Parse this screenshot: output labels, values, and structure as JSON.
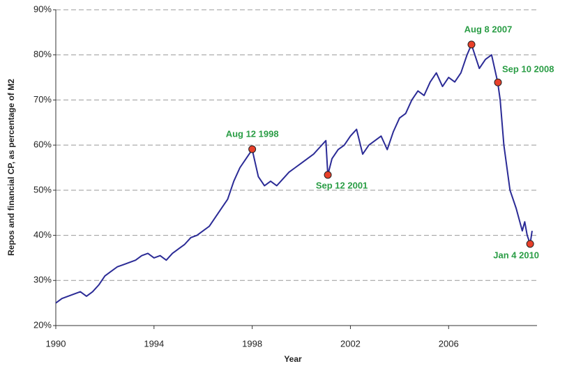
{
  "chart_data": {
    "type": "line",
    "x_label": "Year",
    "y_label": "Repos and financial CP, as percentage of M2",
    "xlim": [
      1990,
      2009.6
    ],
    "xticks": [
      1990,
      1994,
      1998,
      2002,
      2006
    ],
    "ylim": [
      20,
      90
    ],
    "yticks": [
      {
        "value": 20,
        "label": "20%"
      },
      {
        "value": 30,
        "label": "30%"
      },
      {
        "value": 40,
        "label": "40%"
      },
      {
        "value": 50,
        "label": "50%"
      },
      {
        "value": 60,
        "label": "60%"
      },
      {
        "value": 70,
        "label": "70%"
      },
      {
        "value": 80,
        "label": "80%"
      },
      {
        "value": 90,
        "label": "90%"
      }
    ],
    "grid": true,
    "x": [
      1990,
      1990.25,
      1990.5,
      1990.75,
      1991,
      1991.25,
      1991.5,
      1991.75,
      1992,
      1992.25,
      1992.5,
      1992.75,
      1993,
      1993.25,
      1993.5,
      1993.75,
      1994,
      1994.25,
      1994.5,
      1994.75,
      1995,
      1995.25,
      1995.5,
      1995.75,
      1996,
      1996.25,
      1996.5,
      1996.75,
      1997,
      1997.25,
      1997.5,
      1997.75,
      1998,
      1998.25,
      1998.5,
      1998.75,
      1999,
      1999.25,
      1999.5,
      1999.75,
      2000,
      2000.25,
      2000.5,
      2000.75,
      2001,
      2001.08,
      2001.25,
      2001.5,
      2001.75,
      2002,
      2002.25,
      2002.5,
      2002.75,
      2003,
      2003.25,
      2003.5,
      2003.75,
      2004,
      2004.25,
      2004.5,
      2004.75,
      2005,
      2005.25,
      2005.5,
      2005.75,
      2006,
      2006.25,
      2006.5,
      2006.75,
      2006.93,
      2007.25,
      2007.5,
      2007.75,
      2008,
      2008.1,
      2008.25,
      2008.5,
      2008.75,
      2009,
      2009.1,
      2009.2,
      2009.32,
      2009.4
    ],
    "series": [
      {
        "color": "#2b2b96",
        "values": [
          25,
          26,
          26.5,
          27,
          27.5,
          26.5,
          27.5,
          29,
          31,
          32,
          33,
          33.5,
          34,
          34.5,
          35.5,
          36,
          35,
          35.5,
          34.5,
          36,
          37,
          38,
          39.5,
          40,
          41,
          42,
          44,
          46,
          48,
          52,
          55,
          57,
          59,
          53,
          51,
          52,
          51,
          52.5,
          54,
          55,
          56,
          57,
          58,
          59.5,
          61,
          53.4,
          57,
          59,
          60,
          62,
          63.5,
          58,
          60,
          61,
          62,
          59,
          63,
          66,
          67,
          70,
          72,
          71,
          74,
          76,
          73,
          75,
          74,
          76,
          80,
          82.3,
          77,
          79,
          80,
          73.9,
          70,
          60,
          50,
          46,
          41,
          43,
          40,
          38.1,
          41
        ]
      }
    ],
    "marker_color": "#e8402a",
    "annotations": [
      {
        "label": "Aug  12 1998",
        "x": 1998.0,
        "y": 59.1
      },
      {
        "label": "Sep 12 2001",
        "x": 2001.08,
        "y": 53.4
      },
      {
        "label": "Aug  8 2007",
        "x": 2006.93,
        "y": 82.3
      },
      {
        "label": "Sep 10 2008",
        "x": 2008.01,
        "y": 73.9
      },
      {
        "label": "Jan 4 2010",
        "x": 2009.32,
        "y": 38.1
      }
    ]
  }
}
